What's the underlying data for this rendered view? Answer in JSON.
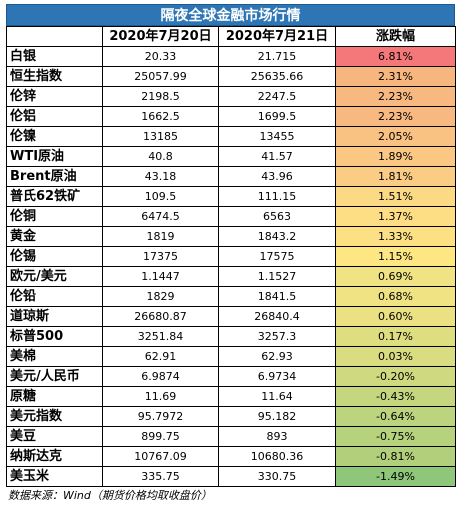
{
  "title": "隔夜全球金融市场行情",
  "headers": [
    "",
    "2020年7月20日",
    "2020年7月21日",
    "涨跌幅"
  ],
  "rows": [
    {
      "name": "白银",
      "d1": "20.33",
      "d2": "21.715",
      "chg": "6.81%",
      "color": "#f4777a"
    },
    {
      "name": "恒生指数",
      "d1": "25057.99",
      "d2": "25635.66",
      "chg": "2.31%",
      "color": "#f8b67f"
    },
    {
      "name": "伦锌",
      "d1": "2198.5",
      "d2": "2247.5",
      "chg": "2.23%",
      "color": "#f8b980"
    },
    {
      "name": "伦铝",
      "d1": "1662.5",
      "d2": "1699.5",
      "chg": "2.23%",
      "color": "#f8b980"
    },
    {
      "name": "伦镍",
      "d1": "13185",
      "d2": "13455",
      "chg": "2.05%",
      "color": "#f9c182"
    },
    {
      "name": "WTI原油",
      "d1": "40.8",
      "d2": "41.57",
      "chg": "1.89%",
      "color": "#fac883"
    },
    {
      "name": "Brent原油",
      "d1": "43.18",
      "d2": "43.96",
      "chg": "1.81%",
      "color": "#fbcc84"
    },
    {
      "name": "普氏62铁矿",
      "d1": "109.5",
      "d2": "111.15",
      "chg": "1.51%",
      "color": "#fcd985"
    },
    {
      "name": "伦铜",
      "d1": "6474.5",
      "d2": "6563",
      "chg": "1.37%",
      "color": "#fdde85"
    },
    {
      "name": "黄金",
      "d1": "1819",
      "d2": "1843.2",
      "chg": "1.33%",
      "color": "#fde083"
    },
    {
      "name": "伦锡",
      "d1": "17375",
      "d2": "17575",
      "chg": "1.15%",
      "color": "#fee683"
    },
    {
      "name": "欧元/美元",
      "d1": "1.1447",
      "d2": "1.1527",
      "chg": "0.69%",
      "color": "#f0e383"
    },
    {
      "name": "伦铅",
      "d1": "1829",
      "d2": "1841.5",
      "chg": "0.68%",
      "color": "#f0e383"
    },
    {
      "name": "道琼斯",
      "d1": "26680.87",
      "d2": "26840.4",
      "chg": "0.60%",
      "color": "#ebe182"
    },
    {
      "name": "标普500",
      "d1": "3251.84",
      "d2": "3257.3",
      "chg": "0.17%",
      "color": "#dedd80"
    },
    {
      "name": "美棉",
      "d1": "62.91",
      "d2": "62.93",
      "chg": "0.03%",
      "color": "#d9dc80"
    },
    {
      "name": "美元/人民币",
      "d1": "6.9874",
      "d2": "6.9734",
      "chg": "-0.20%",
      "color": "#cfd97f"
    },
    {
      "name": "原糖",
      "d1": "11.69",
      "d2": "11.64",
      "chg": "-0.43%",
      "color": "#c5d67e"
    },
    {
      "name": "美元指数",
      "d1": "95.7972",
      "d2": "95.182",
      "chg": "-0.64%",
      "color": "#bcd47d"
    },
    {
      "name": "美豆",
      "d1": "899.75",
      "d2": "893",
      "chg": "-0.75%",
      "color": "#b6d27c"
    },
    {
      "name": "纳斯达克",
      "d1": "10767.09",
      "d2": "10680.36",
      "chg": "-0.81%",
      "color": "#b2d07c"
    },
    {
      "name": "美玉米",
      "d1": "335.75",
      "d2": "330.75",
      "chg": "-1.49%",
      "color": "#8ec67a"
    }
  ],
  "source": "数据来源：Wind（期货价格均取收盘价）"
}
